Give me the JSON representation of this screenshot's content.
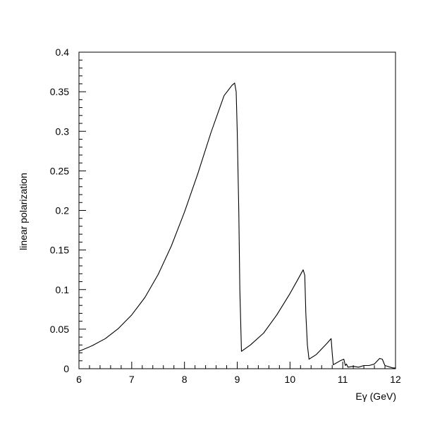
{
  "chart_data": {
    "type": "line",
    "title": "",
    "xlabel": "Eγ (GeV)",
    "ylabel": "linear polarization",
    "xlim": [
      6,
      12
    ],
    "ylim": [
      0,
      0.4
    ],
    "grid": false,
    "x_ticks": [
      6,
      7,
      8,
      9,
      10,
      11,
      12
    ],
    "x_tick_labels": [
      "6",
      "7",
      "8",
      "9",
      "10",
      "11",
      "12"
    ],
    "y_ticks": [
      0,
      0.05,
      0.1,
      0.15,
      0.2,
      0.25,
      0.3,
      0.35,
      0.4
    ],
    "y_tick_labels": [
      "0",
      "0.05",
      "0.1",
      "0.15",
      "0.2",
      "0.25",
      "0.3",
      "0.35",
      "0.4"
    ],
    "series": [
      {
        "x": [
          6.0,
          6.25,
          6.5,
          6.75,
          7.0,
          7.25,
          7.5,
          7.75,
          8.0,
          8.25,
          8.5,
          8.75,
          8.9,
          8.95,
          8.98,
          9.0,
          9.03,
          9.05,
          9.08,
          9.25,
          9.5,
          9.75,
          10.0,
          10.15,
          10.25,
          10.28,
          10.3,
          10.33,
          10.36,
          10.5,
          10.7,
          10.78,
          10.8,
          10.82,
          10.95,
          11.02,
          11.05,
          11.07,
          11.1,
          11.2,
          11.3,
          11.4,
          11.5,
          11.6,
          11.7,
          11.75,
          11.8,
          11.85,
          11.9,
          11.95,
          12.0
        ],
        "y": [
          0.022,
          0.029,
          0.038,
          0.051,
          0.068,
          0.09,
          0.119,
          0.155,
          0.198,
          0.246,
          0.298,
          0.345,
          0.358,
          0.361,
          0.35,
          0.3,
          0.2,
          0.1,
          0.022,
          0.03,
          0.045,
          0.068,
          0.095,
          0.113,
          0.125,
          0.118,
          0.07,
          0.03,
          0.012,
          0.018,
          0.032,
          0.038,
          0.02,
          0.005,
          0.01,
          0.012,
          0.004,
          0.006,
          0.002,
          0.003,
          0.002,
          0.004,
          0.004,
          0.006,
          0.013,
          0.012,
          0.004,
          0.003,
          0.002,
          0.001,
          0.001
        ]
      }
    ]
  }
}
